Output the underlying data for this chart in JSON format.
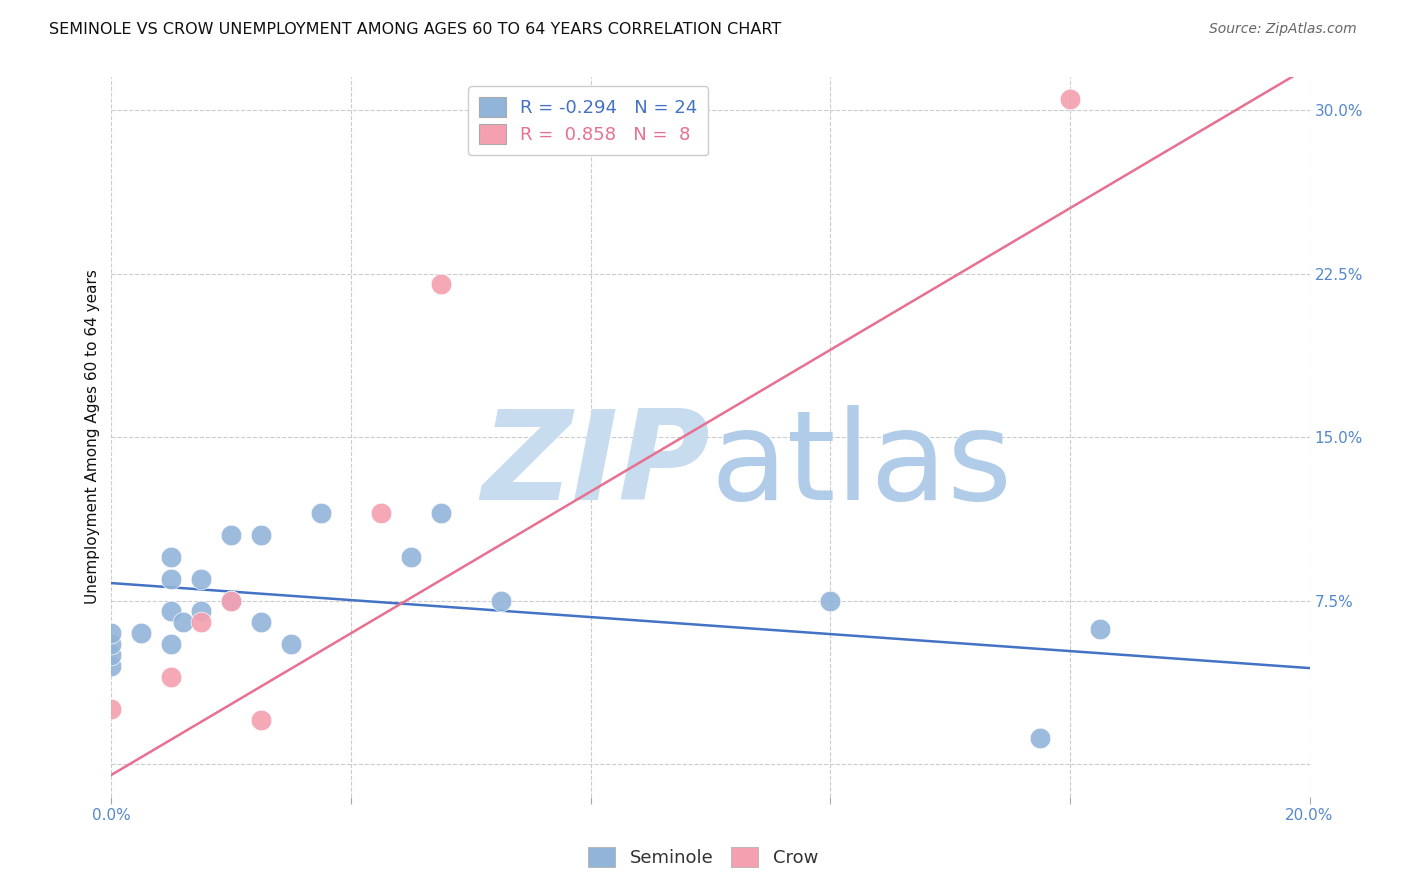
{
  "title": "SEMINOLE VS CROW UNEMPLOYMENT AMONG AGES 60 TO 64 YEARS CORRELATION CHART",
  "source": "Source: ZipAtlas.com",
  "ylabel": "Unemployment Among Ages 60 to 64 years",
  "xlim": [
    0.0,
    0.2
  ],
  "ylim": [
    -0.015,
    0.315
  ],
  "xticks": [
    0.0,
    0.04,
    0.08,
    0.12,
    0.16,
    0.2
  ],
  "xtick_labels": [
    "0.0%",
    "",
    "",
    "",
    "",
    "20.0%"
  ],
  "yticks": [
    0.0,
    0.075,
    0.15,
    0.225,
    0.3
  ],
  "ytick_labels": [
    "",
    "7.5%",
    "15.0%",
    "22.5%",
    "30.0%"
  ],
  "seminole_R": -0.294,
  "seminole_N": 24,
  "crow_R": 0.858,
  "crow_N": 8,
  "seminole_color": "#92b4d9",
  "crow_color": "#f4a0b0",
  "seminole_line_color": "#4472c4",
  "crow_line_color": "#e87090",
  "background_color": "#ffffff",
  "grid_color": "#cccccc",
  "seminole_x": [
    0.0,
    0.0,
    0.0,
    0.0,
    0.005,
    0.01,
    0.01,
    0.01,
    0.01,
    0.012,
    0.015,
    0.015,
    0.02,
    0.02,
    0.025,
    0.025,
    0.03,
    0.035,
    0.05,
    0.055,
    0.065,
    0.12,
    0.155,
    0.165
  ],
  "seminole_y": [
    0.045,
    0.05,
    0.055,
    0.06,
    0.06,
    0.055,
    0.07,
    0.085,
    0.095,
    0.065,
    0.07,
    0.085,
    0.075,
    0.105,
    0.065,
    0.105,
    0.055,
    0.115,
    0.095,
    0.115,
    0.075,
    0.075,
    0.012,
    0.062
  ],
  "crow_x": [
    0.0,
    0.01,
    0.015,
    0.02,
    0.025,
    0.045,
    0.055,
    0.16
  ],
  "crow_y": [
    0.025,
    0.04,
    0.065,
    0.075,
    0.02,
    0.115,
    0.22,
    0.305
  ],
  "seminole_line_x": [
    0.0,
    0.2
  ],
  "seminole_line_y": [
    0.083,
    0.044
  ],
  "crow_line_x": [
    0.0,
    0.2
  ],
  "crow_line_y": [
    -0.005,
    0.32
  ],
  "watermark_zip": "ZIP",
  "watermark_atlas": "atlas",
  "watermark_color": "#d8e8f8",
  "title_fontsize": 11.5,
  "axis_label_fontsize": 11,
  "tick_fontsize": 11,
  "legend_fontsize": 13,
  "source_fontsize": 10
}
